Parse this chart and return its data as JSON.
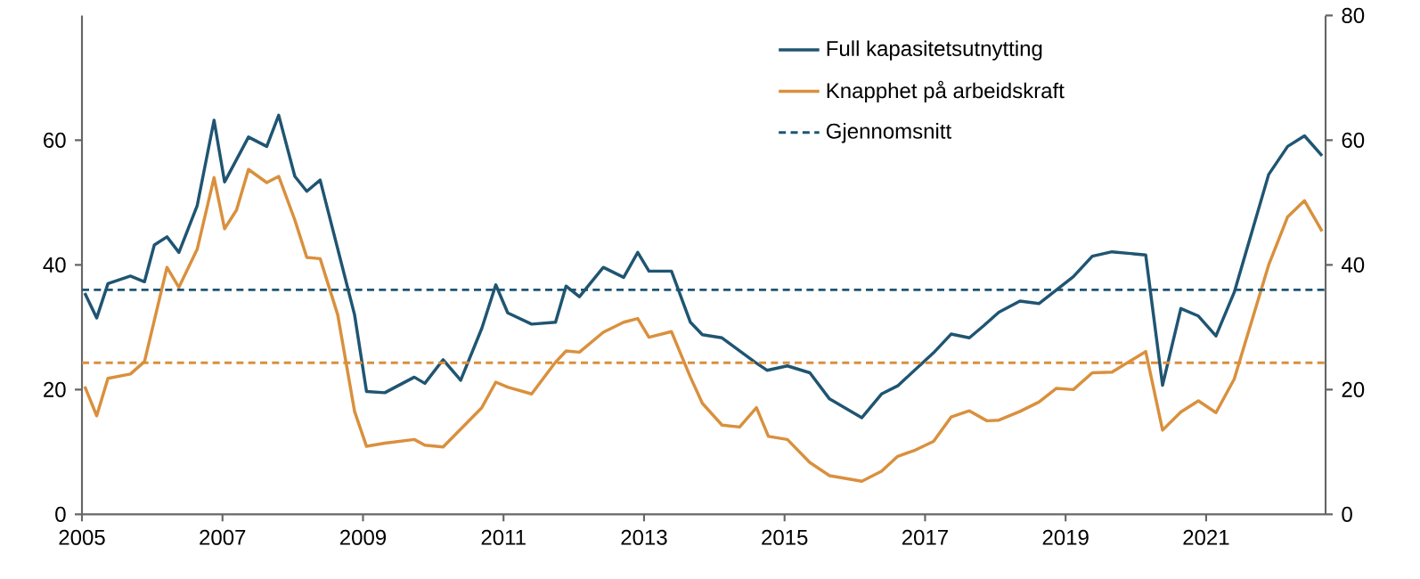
{
  "chart_data": {
    "type": "line",
    "xlim": [
      2005,
      2022.7
    ],
    "xticks": [
      2005,
      2007,
      2009,
      2011,
      2013,
      2015,
      2017,
      2019,
      2021
    ],
    "ylim": [
      0,
      80
    ],
    "yticks": [
      0,
      20,
      40,
      60
    ],
    "y2lim": [
      0,
      80
    ],
    "y2ticks": [
      0,
      20,
      40,
      60,
      80
    ],
    "legend": "top right",
    "grid": false,
    "marker": "none",
    "line_style": "solid",
    "series": [
      {
        "name": "Full kapasitetsutnytting",
        "color": "#1f5572",
        "x": [
          2005.04,
          2005.21,
          2005.37,
          2005.69,
          2005.89,
          2006.03,
          2006.21,
          2006.38,
          2006.64,
          2006.88,
          2007.03,
          2007.37,
          2007.63,
          2007.8,
          2008.03,
          2008.2,
          2008.39,
          2008.88,
          2009.05,
          2009.31,
          2009.73,
          2009.88,
          2010.14,
          2010.39,
          2010.69,
          2010.89,
          2011.06,
          2011.4,
          2011.74,
          2011.89,
          2012.08,
          2012.42,
          2012.71,
          2012.91,
          2013.07,
          2013.39,
          2013.66,
          2013.83,
          2014.11,
          2014.58,
          2014.75,
          2015.04,
          2015.36,
          2015.64,
          2016.1,
          2016.38,
          2016.61,
          2017.12,
          2017.37,
          2017.63,
          2017.84,
          2018.05,
          2018.35,
          2018.62,
          2019.11,
          2019.38,
          2019.66,
          2020.14,
          2020.38,
          2020.64,
          2020.89,
          2021.14,
          2021.4,
          2021.89,
          2022.16,
          2022.4,
          2022.65
        ],
        "values": [
          35.5,
          31.5,
          37,
          38.2,
          37.3,
          43.2,
          44.5,
          42,
          49.5,
          63.2,
          53.3,
          60.5,
          59,
          64,
          54.2,
          51.8,
          53.6,
          32,
          19.7,
          19.5,
          22,
          21,
          24.8,
          21.5,
          29.8,
          36.8,
          32.3,
          30.5,
          30.8,
          36.6,
          34.9,
          39.6,
          38,
          42,
          39,
          39,
          30.8,
          28.8,
          28.3,
          24.4,
          23.1,
          23.8,
          22.7,
          18.5,
          15.5,
          19.3,
          20.6,
          25.9,
          28.9,
          28.3,
          30.3,
          32.4,
          34.2,
          33.8,
          38.1,
          41.4,
          42.1,
          41.6,
          20.7,
          33,
          31.8,
          28.6,
          35.6,
          54.5,
          59,
          60.7,
          57.5
        ]
      },
      {
        "name": "Knapphet på arbeidskraft",
        "color": "#d9903d",
        "x": [
          2005.04,
          2005.21,
          2005.37,
          2005.69,
          2005.89,
          2006.21,
          2006.38,
          2006.64,
          2006.88,
          2007.03,
          2007.2,
          2007.37,
          2007.63,
          2007.8,
          2008.03,
          2008.2,
          2008.39,
          2008.64,
          2008.88,
          2009.05,
          2009.31,
          2009.73,
          2009.88,
          2010.14,
          2010.69,
          2010.89,
          2011.06,
          2011.4,
          2011.74,
          2011.89,
          2012.08,
          2012.42,
          2012.71,
          2012.91,
          2013.07,
          2013.39,
          2013.66,
          2013.83,
          2014.11,
          2014.36,
          2014.6,
          2014.77,
          2015.04,
          2015.36,
          2015.64,
          2016.1,
          2016.38,
          2016.61,
          2016.86,
          2017.12,
          2017.37,
          2017.63,
          2017.88,
          2018.05,
          2018.35,
          2018.62,
          2018.87,
          2019.11,
          2019.38,
          2019.66,
          2020.14,
          2020.38,
          2020.64,
          2020.89,
          2021.14,
          2021.4,
          2021.89,
          2022.16,
          2022.4,
          2022.65
        ],
        "values": [
          20.5,
          15.8,
          21.8,
          22.5,
          24.5,
          39.6,
          36.4,
          42.5,
          54,
          45.8,
          48.8,
          55.3,
          53.2,
          54.2,
          47.2,
          41.2,
          41,
          32,
          16.5,
          10.9,
          11.4,
          12,
          11.1,
          10.8,
          17.1,
          21.2,
          20.4,
          19.3,
          24.4,
          26.2,
          26,
          29.2,
          30.8,
          31.4,
          28.4,
          29.3,
          22,
          17.8,
          14.3,
          14,
          17.1,
          12.5,
          12,
          8.3,
          6.2,
          5.3,
          6.9,
          9.3,
          10.3,
          11.7,
          15.6,
          16.6,
          15,
          15.1,
          16.5,
          18,
          20.2,
          20,
          22.7,
          22.8,
          26.1,
          13.5,
          16.4,
          18.2,
          16.3,
          21.7,
          40,
          47.7,
          50.3,
          45.4
        ]
      }
    ],
    "ref_lines": [
      {
        "axis": "y",
        "value": 36,
        "color": "#1f5572",
        "line_style": "dashed",
        "label": "Gjennomsnitt"
      },
      {
        "axis": "y",
        "value": 24.3,
        "color": "#d9903d",
        "line_style": "dashed"
      }
    ]
  }
}
